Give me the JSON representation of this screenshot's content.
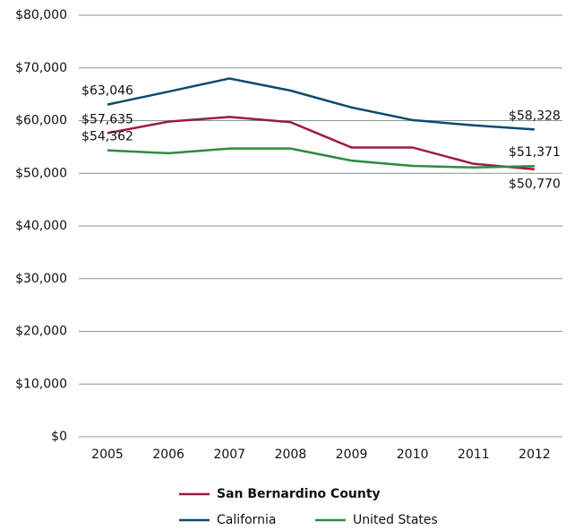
{
  "chart_data": {
    "type": "line",
    "categories": [
      "2005",
      "2006",
      "2007",
      "2008",
      "2009",
      "2010",
      "2011",
      "2012"
    ],
    "series": [
      {
        "name": "San Bernardino County",
        "color": "#9b1b42",
        "values": [
          57635,
          59800,
          60700,
          59700,
          54900,
          54900,
          51800,
          50770
        ],
        "value_labels": [
          "$57,635",
          null,
          null,
          null,
          null,
          null,
          null,
          "$50,770"
        ]
      },
      {
        "name": "California",
        "color": "#0d4a6e",
        "values": [
          63046,
          65500,
          68000,
          65700,
          62500,
          60100,
          59100,
          58328
        ],
        "value_labels": [
          "$63,046",
          null,
          null,
          null,
          null,
          null,
          null,
          "$58,328"
        ]
      },
      {
        "name": "United States",
        "color": "#2e8b3e",
        "values": [
          54362,
          53800,
          54700,
          54700,
          52400,
          51400,
          51100,
          51371
        ],
        "value_labels": [
          "$54,362",
          null,
          null,
          null,
          null,
          null,
          null,
          "$51,371"
        ]
      }
    ],
    "ylim": [
      0,
      80000
    ],
    "yticks": [
      {
        "value": 0,
        "label": "$0"
      },
      {
        "value": 10000,
        "label": "$10,000"
      },
      {
        "value": 20000,
        "label": "$20,000"
      },
      {
        "value": 30000,
        "label": "$30,000"
      },
      {
        "value": 40000,
        "label": "$40,000"
      },
      {
        "value": 50000,
        "label": "$50,000"
      },
      {
        "value": 60000,
        "label": "$60,000"
      },
      {
        "value": 70000,
        "label": "$70,000"
      },
      {
        "value": 80000,
        "label": "$80,000"
      }
    ],
    "grid": true
  }
}
